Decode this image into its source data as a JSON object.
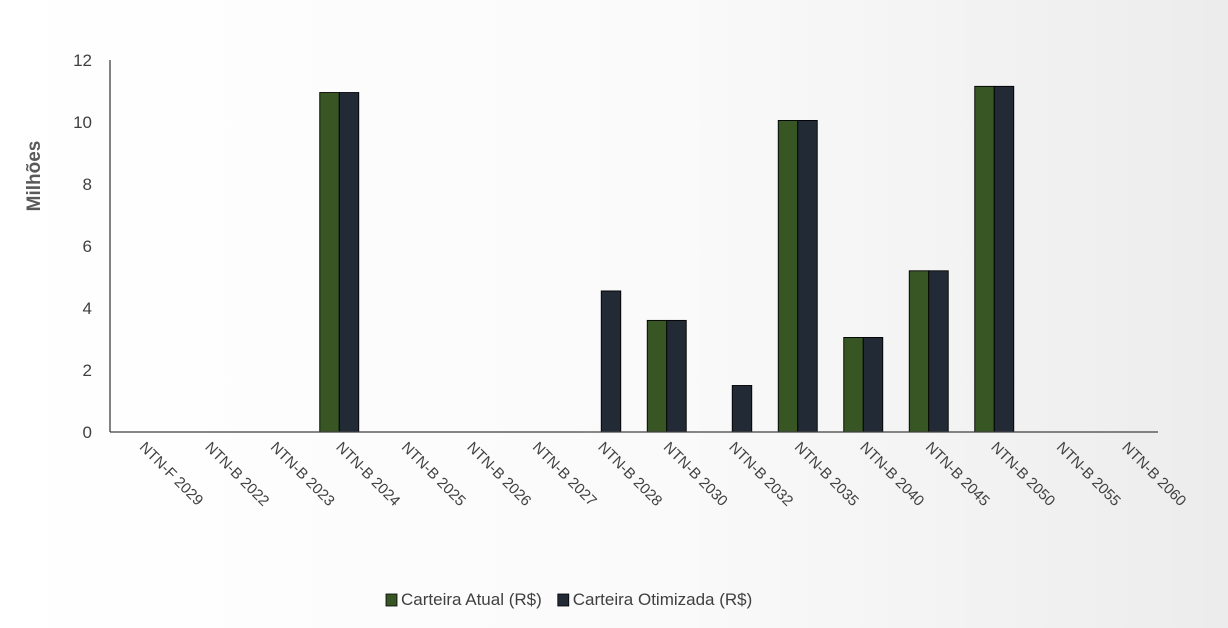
{
  "chart_data": {
    "type": "bar",
    "ylabel": "Milhões",
    "ylim": [
      0,
      12
    ],
    "yticks": [
      0,
      2,
      4,
      6,
      8,
      10,
      12
    ],
    "categories": [
      "NTN-F 2029",
      "NTN-B 2022",
      "NTN-B 2023",
      "NTN-B 2024",
      "NTN-B 2025",
      "NTN-B 2026",
      "NTN-B 2027",
      "NTN-B 2028",
      "NTN-B 2030",
      "NTN-B 2032",
      "NTN-B 2035",
      "NTN-B 2040",
      "NTN-B 2045",
      "NTN-B 2050",
      "NTN-B 2055",
      "NTN-B 2060"
    ],
    "series": [
      {
        "name": "Carteira Atual (R$)",
        "color": "#375623",
        "values": [
          0,
          0,
          0,
          10.95,
          0,
          0,
          0,
          0,
          3.6,
          0,
          10.05,
          3.05,
          5.2,
          11.15,
          0,
          0
        ]
      },
      {
        "name": "Carteira Otimizada (R$)",
        "color": "#222a35",
        "values": [
          0,
          0,
          0,
          10.95,
          0,
          0,
          0,
          4.55,
          3.6,
          1.5,
          10.05,
          3.05,
          5.2,
          11.15,
          0,
          0
        ]
      }
    ],
    "grid": false,
    "legend": "bottom",
    "axis_color": "#404040"
  }
}
